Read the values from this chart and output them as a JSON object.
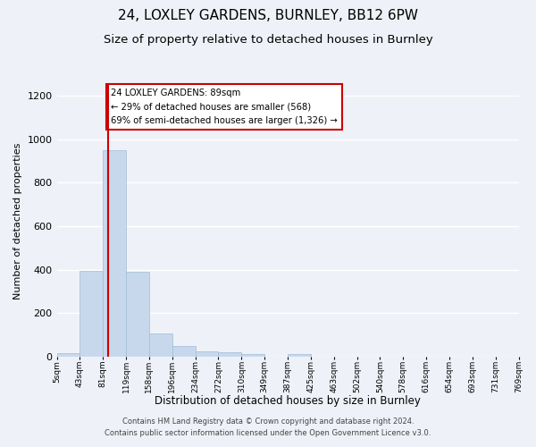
{
  "title1": "24, LOXLEY GARDENS, BURNLEY, BB12 6PW",
  "title2": "Size of property relative to detached houses in Burnley",
  "xlabel": "Distribution of detached houses by size in Burnley",
  "ylabel": "Number of detached properties",
  "footer1": "Contains HM Land Registry data © Crown copyright and database right 2024.",
  "footer2": "Contains public sector information licensed under the Open Government Licence v3.0.",
  "bin_labels": [
    "5sqm",
    "43sqm",
    "81sqm",
    "119sqm",
    "158sqm",
    "196sqm",
    "234sqm",
    "272sqm",
    "310sqm",
    "349sqm",
    "387sqm",
    "425sqm",
    "463sqm",
    "502sqm",
    "540sqm",
    "578sqm",
    "616sqm",
    "654sqm",
    "693sqm",
    "731sqm",
    "769sqm"
  ],
  "bar_values": [
    15,
    395,
    950,
    390,
    105,
    50,
    25,
    20,
    13,
    0,
    12,
    0,
    0,
    0,
    0,
    0,
    0,
    0,
    0,
    0
  ],
  "bar_color": "#c8d8ec",
  "bar_edge_color": "#a0bcd8",
  "property_line_color": "#cc0000",
  "annotation_text": "24 LOXLEY GARDENS: 89sqm\n← 29% of detached houses are smaller (568)\n69% of semi-detached houses are larger (1,326) →",
  "annotation_box_color": "#ffffff",
  "annotation_box_edge": "#cc0000",
  "ylim": [
    0,
    1250
  ],
  "yticks": [
    0,
    200,
    400,
    600,
    800,
    1000,
    1200
  ],
  "bg_color": "#eef2f8",
  "grid_color": "#ffffff",
  "title1_fontsize": 11,
  "title2_fontsize": 9.5
}
